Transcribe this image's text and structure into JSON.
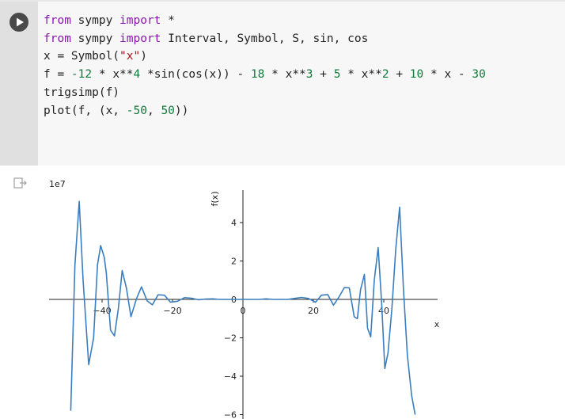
{
  "cell": {
    "lines": [
      [
        {
          "t": "from",
          "c": "kw"
        },
        {
          "t": " sympy ",
          "c": ""
        },
        {
          "t": "import",
          "c": "kw"
        },
        {
          "t": " *",
          "c": ""
        }
      ],
      [
        {
          "t": "from",
          "c": "kw"
        },
        {
          "t": " sympy ",
          "c": ""
        },
        {
          "t": "import",
          "c": "kw"
        },
        {
          "t": " Interval, Symbol, S, sin, cos",
          "c": ""
        }
      ],
      [
        {
          "t": "x = Symbol(",
          "c": ""
        },
        {
          "t": "\"x\"",
          "c": "str"
        },
        {
          "t": ")",
          "c": ""
        }
      ],
      [
        {
          "t": "f = ",
          "c": ""
        },
        {
          "t": "-12",
          "c": "num"
        },
        {
          "t": " * x**",
          "c": ""
        },
        {
          "t": "4",
          "c": "num"
        },
        {
          "t": " *sin(cos(x)) - ",
          "c": ""
        },
        {
          "t": "18",
          "c": "num"
        },
        {
          "t": " * x**",
          "c": ""
        },
        {
          "t": "3",
          "c": "num"
        },
        {
          "t": " + ",
          "c": ""
        },
        {
          "t": "5",
          "c": "num"
        },
        {
          "t": " * x**",
          "c": ""
        },
        {
          "t": "2",
          "c": "num"
        },
        {
          "t": " + ",
          "c": ""
        },
        {
          "t": "10",
          "c": "num"
        },
        {
          "t": " * x - ",
          "c": ""
        },
        {
          "t": "30",
          "c": "num"
        }
      ],
      [
        {
          "t": "trigsimp(f)",
          "c": ""
        }
      ],
      [
        {
          "t": "plot(f, (x, ",
          "c": ""
        },
        {
          "t": "-50",
          "c": "num"
        },
        {
          "t": ", ",
          "c": ""
        },
        {
          "t": "50",
          "c": "num"
        },
        {
          "t": "))",
          "c": ""
        }
      ]
    ]
  },
  "chart_data": {
    "type": "line",
    "ylabel": "f(x)",
    "xlabel": "x",
    "offset_text": "1e7",
    "xlim": [
      -50,
      50
    ],
    "ylim": [
      -6,
      5.5
    ],
    "x_ticks": [
      -40,
      -20,
      0,
      20,
      40
    ],
    "x_tick_labels": [
      "−40",
      "−20",
      "0",
      "20",
      "40"
    ],
    "y_ticks": [
      4,
      2,
      0,
      -2,
      -4,
      -6
    ],
    "y_tick_labels": [
      "4",
      "2",
      "0",
      "−2",
      "−4",
      "−6"
    ],
    "series": [
      {
        "color": "#3a7ebf",
        "x": [
          -48.9,
          -47.7,
          -46.5,
          -45.4,
          -43.8,
          -42.4,
          -41.3,
          -40.4,
          -39.4,
          -38.8,
          -37.6,
          -36.5,
          -35.4,
          -34.3,
          -33.1,
          -31.8,
          -30.2,
          -28.8,
          -27.2,
          -25.7,
          -24.1,
          -22.3,
          -20.6,
          -18.6,
          -16.6,
          -14.6,
          -12.6,
          -10.6,
          -8.5,
          -6.6,
          -4.5,
          -2.5,
          0,
          2.5,
          4.5,
          6.6,
          8.5,
          10.6,
          12.6,
          14.6,
          16.6,
          18.6,
          20.6,
          22.3,
          24.1,
          25.7,
          27.2,
          28.8,
          30.2,
          31.6,
          32.5,
          33.4,
          34.5,
          35.4,
          36.3,
          37.3,
          38.4,
          39.4,
          40.3,
          41.2,
          42.3,
          43.4,
          44.5,
          45.6,
          46.7,
          47.9,
          48.9
        ],
        "y": [
          -5.8,
          1.8,
          5.1,
          1.0,
          -3.4,
          -2.0,
          1.8,
          2.8,
          2.2,
          1.4,
          -1.6,
          -1.9,
          -0.5,
          1.5,
          0.6,
          -0.9,
          0.05,
          0.65,
          -0.08,
          -0.28,
          0.24,
          0.22,
          -0.14,
          -0.1,
          0.09,
          0.06,
          -0.02,
          0.02,
          0.03,
          0.0,
          0.0,
          0.0,
          0.0,
          0.0,
          0.0,
          0.03,
          0.0,
          0.0,
          0.0,
          0.05,
          0.1,
          0.05,
          -0.15,
          0.22,
          0.25,
          -0.3,
          0.1,
          0.62,
          0.6,
          -0.9,
          -1.0,
          0.5,
          1.3,
          -1.5,
          -1.95,
          1.0,
          2.7,
          -0.2,
          -3.6,
          -2.8,
          -0.5,
          2.6,
          4.8,
          0.5,
          -2.9,
          -5.0,
          -6.0
        ]
      }
    ]
  }
}
